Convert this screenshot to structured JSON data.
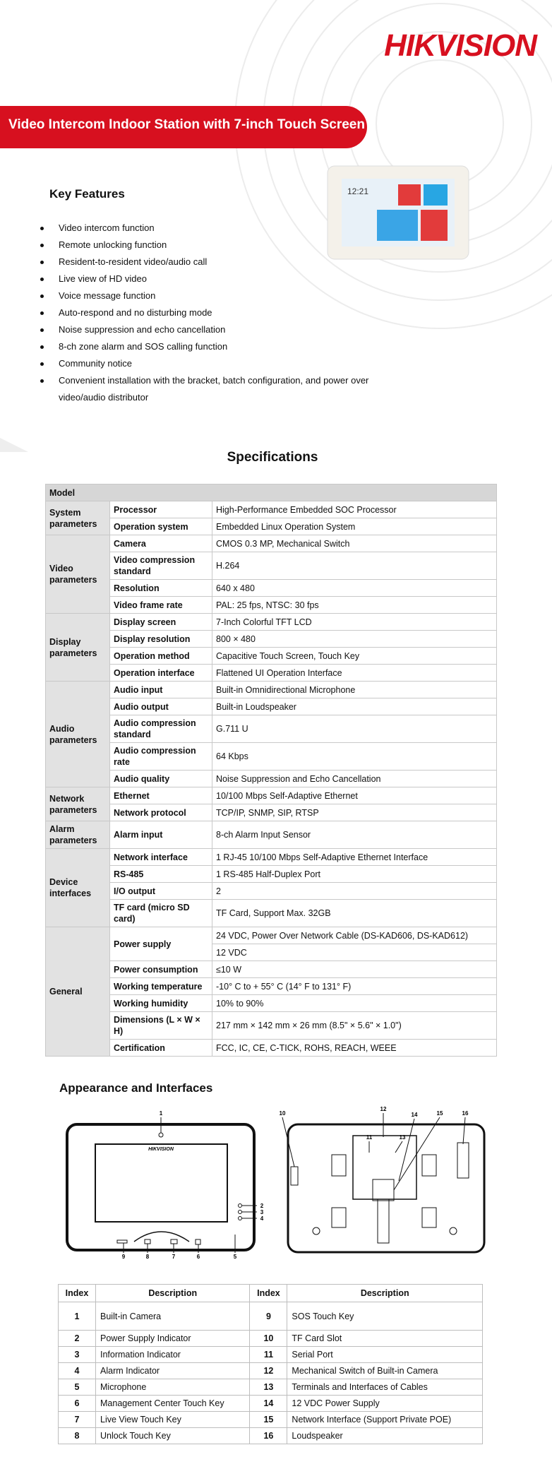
{
  "header": {
    "brand": "HIKVISION",
    "title": "Video Intercom Indoor Station with 7-inch Touch Screen"
  },
  "device_image": {
    "time": "12:21"
  },
  "key_features": {
    "title": "Key Features",
    "items": [
      "Video intercom function",
      "Remote unlocking function",
      "Resident-to-resident video/audio call",
      "Live view of HD video",
      "Voice message function",
      "Auto-respond and no disturbing mode",
      "Noise suppression and echo cancellation",
      "8-ch zone alarm and SOS calling function",
      "Community notice",
      "Convenient installation with the bracket, batch configuration, and power over video/audio distributor"
    ]
  },
  "specifications": {
    "title": "Specifications",
    "header": "Model",
    "groups": [
      {
        "label": "System parameters",
        "rows": [
          {
            "name": "Processor",
            "values": [
              "High-Performance Embedded SOC Processor"
            ]
          },
          {
            "name": "Operation system",
            "values": [
              "Embedded Linux Operation System"
            ]
          }
        ]
      },
      {
        "label": "Video parameters",
        "rows": [
          {
            "name": "Camera",
            "values": [
              "CMOS 0.3 MP, Mechanical Switch"
            ]
          },
          {
            "name": "Video compression standard",
            "values": [
              "H.264"
            ]
          },
          {
            "name": "Resolution",
            "values": [
              "640 x 480"
            ]
          },
          {
            "name": "Video frame rate",
            "values": [
              "PAL: 25 fps, NTSC: 30 fps"
            ]
          }
        ]
      },
      {
        "label": "Display parameters",
        "rows": [
          {
            "name": "Display screen",
            "values": [
              "7-Inch Colorful TFT LCD"
            ]
          },
          {
            "name": "Display resolution",
            "values": [
              "800 × 480"
            ]
          },
          {
            "name": "Operation method",
            "values": [
              "Capacitive Touch Screen, Touch Key"
            ]
          },
          {
            "name": "Operation interface",
            "values": [
              "Flattened UI Operation Interface"
            ]
          }
        ]
      },
      {
        "label": "Audio parameters",
        "rows": [
          {
            "name": "Audio input",
            "values": [
              "Built-in Omnidirectional Microphone"
            ]
          },
          {
            "name": "Audio output",
            "values": [
              "Built-in Loudspeaker"
            ]
          },
          {
            "name": "Audio compression standard",
            "values": [
              "G.711 U"
            ]
          },
          {
            "name": "Audio compression rate",
            "values": [
              "64 Kbps"
            ]
          },
          {
            "name": "Audio quality",
            "values": [
              "Noise Suppression and Echo Cancellation"
            ]
          }
        ]
      },
      {
        "label": "Network parameters",
        "rows": [
          {
            "name": "Ethernet",
            "values": [
              "10/100 Mbps Self-Adaptive Ethernet"
            ]
          },
          {
            "name": "Network protocol",
            "values": [
              "TCP/IP, SNMP, SIP, RTSP"
            ]
          }
        ]
      },
      {
        "label": "Alarm parameters",
        "rows": [
          {
            "name": "Alarm input",
            "values": [
              "8-ch Alarm Input Sensor"
            ]
          }
        ]
      },
      {
        "label": "Device interfaces",
        "rows": [
          {
            "name": "Network interface",
            "values": [
              "1 RJ-45 10/100 Mbps Self-Adaptive Ethernet Interface"
            ]
          },
          {
            "name": "RS-485",
            "values": [
              "1 RS-485 Half-Duplex Port"
            ]
          },
          {
            "name": "I/O output",
            "values": [
              "2"
            ]
          },
          {
            "name": "TF card (micro SD card)",
            "values": [
              "TF Card, Support Max. 32GB"
            ]
          }
        ]
      },
      {
        "label": "General",
        "rows": [
          {
            "name": "Power supply",
            "values": [
              "24 VDC, Power Over Network Cable (DS-KAD606, DS-KAD612)",
              "12 VDC"
            ]
          },
          {
            "name": "Power consumption",
            "values": [
              "≤10 W"
            ]
          },
          {
            "name": "Working temperature",
            "values": [
              "-10° C to + 55° C (14° F to 131° F)"
            ]
          },
          {
            "name": "Working humidity",
            "values": [
              "10% to 90%"
            ]
          },
          {
            "name": "Dimensions (L × W × H)",
            "values": [
              "217 mm × 142 mm × 26 mm (8.5\" × 5.6\" × 1.0\")"
            ]
          },
          {
            "name": "Certification",
            "values": [
              "FCC, IC, CE, C-TICK, ROHS, REACH, WEEE"
            ]
          }
        ]
      }
    ]
  },
  "appearance": {
    "title": "Appearance and Interfaces",
    "front_logo": "HIKVISION",
    "front_callouts": [
      1,
      2,
      3,
      4,
      5,
      6,
      7,
      8,
      9
    ],
    "back_callouts": [
      10,
      11,
      12,
      13,
      14,
      15,
      16
    ],
    "table": {
      "columns": [
        "Index",
        "Description",
        "Index",
        "Description"
      ],
      "rows": [
        [
          1,
          "Built-in Camera",
          9,
          "SOS Touch Key"
        ],
        [
          2,
          "Power Supply Indicator",
          10,
          "TF Card Slot"
        ],
        [
          3,
          "Information Indicator",
          11,
          "Serial Port"
        ],
        [
          4,
          "Alarm Indicator",
          12,
          "Mechanical Switch of Built-in Camera"
        ],
        [
          5,
          "Microphone",
          13,
          "Terminals and Interfaces of Cables"
        ],
        [
          6,
          "Management Center Touch Key",
          14,
          "12 VDC Power Supply"
        ],
        [
          7,
          "Live View Touch Key",
          15,
          "Network Interface (Support Private POE)"
        ],
        [
          8,
          "Unlock Touch Key",
          16,
          "Loudspeaker"
        ]
      ]
    }
  }
}
